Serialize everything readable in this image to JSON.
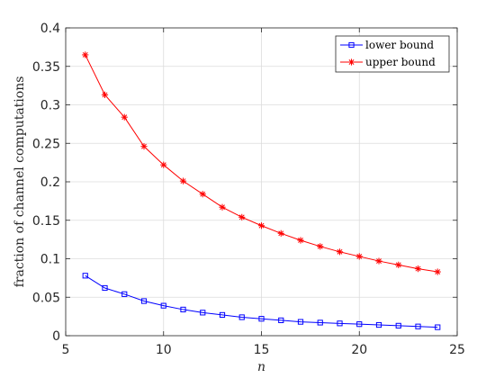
{
  "chart_data": {
    "type": "line",
    "xlabel": "n",
    "ylabel": "fraction of channel computations",
    "xlim": [
      5,
      25
    ],
    "ylim": [
      0,
      0.4
    ],
    "xticks": [
      "5",
      "10",
      "15",
      "20",
      "25"
    ],
    "yticks": [
      "0",
      "0.05",
      "0.1",
      "0.15",
      "0.2",
      "0.25",
      "0.3",
      "0.35",
      "0.4"
    ],
    "grid": true,
    "legend_position": "top-right",
    "x": [
      6,
      7,
      8,
      9,
      10,
      11,
      12,
      13,
      14,
      15,
      16,
      17,
      18,
      19,
      20,
      21,
      22,
      23,
      24
    ],
    "series": [
      {
        "name": "lower bound",
        "color": "#0000ff",
        "marker": "square",
        "values": [
          0.078,
          0.062,
          0.054,
          0.045,
          0.039,
          0.034,
          0.03,
          0.027,
          0.024,
          0.022,
          0.02,
          0.018,
          0.017,
          0.016,
          0.015,
          0.014,
          0.013,
          0.012,
          0.011
        ]
      },
      {
        "name": "upper bound",
        "color": "#ff0000",
        "marker": "asterisk",
        "values": [
          0.365,
          0.313,
          0.284,
          0.246,
          0.222,
          0.201,
          0.184,
          0.167,
          0.154,
          0.143,
          0.133,
          0.124,
          0.116,
          0.109,
          0.103,
          0.097,
          0.092,
          0.087,
          0.083
        ]
      }
    ]
  }
}
